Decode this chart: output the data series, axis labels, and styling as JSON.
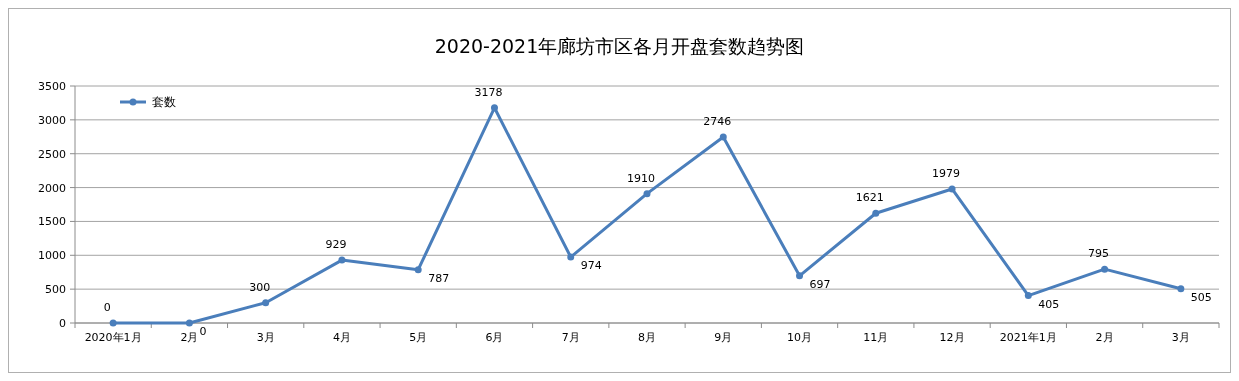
{
  "chart_data": {
    "type": "line",
    "title": "2020-2021年廊坊市区各月开盘套数趋势图",
    "categories": [
      "2020年1月",
      "2月",
      "3月",
      "4月",
      "5月",
      "6月",
      "7月",
      "8月",
      "9月",
      "10月",
      "11月",
      "12月",
      "2021年1月",
      "2月",
      "3月"
    ],
    "series": [
      {
        "name": "套数",
        "color": "#4a7ebb",
        "values": [
          0,
          0,
          300,
          929,
          787,
          3178,
          974,
          1910,
          2746,
          697,
          1621,
          1979,
          405,
          795,
          505
        ]
      }
    ],
    "ylim": [
      0,
      3500
    ],
    "yticks": [
      0,
      500,
      1000,
      1500,
      2000,
      2500,
      3000,
      3500
    ],
    "grid": "y",
    "legend": "top left",
    "marker": "circle",
    "line_style": "solid",
    "data_labels": true
  }
}
